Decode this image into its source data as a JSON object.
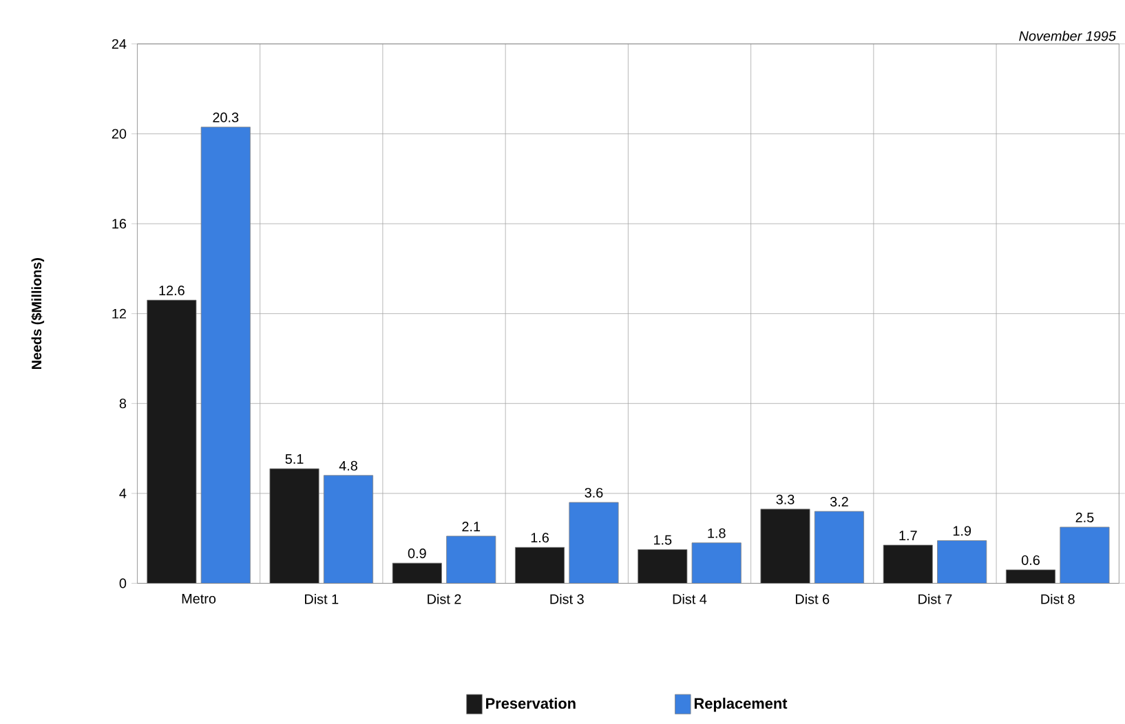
{
  "chart_data": {
    "type": "bar",
    "ylabel": "Needs ($Millions)",
    "annotations": [
      "November 1995"
    ],
    "categories": [
      "Metro",
      "Dist 1",
      "Dist 2",
      "Dist 3",
      "Dist 4",
      "Dist 6",
      "Dist 7",
      "Dist 8"
    ],
    "series": [
      {
        "name": "Preservation",
        "color": "#1a1a1a",
        "values": [
          12.6,
          5.1,
          0.9,
          1.6,
          1.5,
          3.3,
          1.7,
          0.6
        ]
      },
      {
        "name": "Replacement",
        "color": "#3a7fe0",
        "values": [
          20.3,
          4.8,
          2.1,
          3.6,
          1.8,
          3.2,
          1.9,
          2.5
        ]
      }
    ],
    "ylim": [
      0,
      24
    ],
    "yticks": [
      0,
      4,
      8,
      12,
      16,
      20,
      24
    ],
    "grid": true,
    "legend": "bottom",
    "data_labels": true
  }
}
